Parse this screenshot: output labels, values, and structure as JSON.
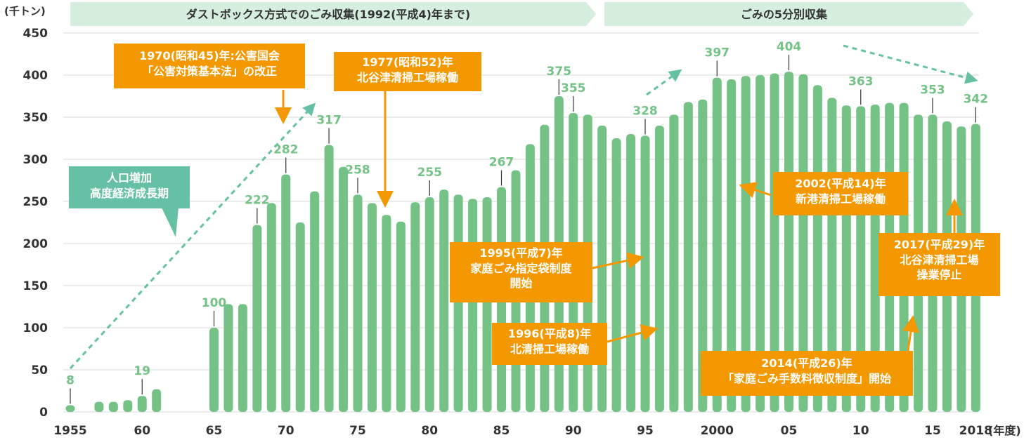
{
  "chart_data": {
    "type": "bar",
    "unit_label": "(千トン)",
    "x_unit_label": "(年度)",
    "ylim": [
      0,
      450
    ],
    "y_ticks": [
      0,
      50,
      100,
      150,
      200,
      250,
      300,
      350,
      400,
      450
    ],
    "x_ticks": [
      {
        "year": 1955,
        "label": "1955"
      },
      {
        "year": 1960,
        "label": "60"
      },
      {
        "year": 1965,
        "label": "65"
      },
      {
        "year": 1970,
        "label": "70"
      },
      {
        "year": 1975,
        "label": "75"
      },
      {
        "year": 1980,
        "label": "80"
      },
      {
        "year": 1985,
        "label": "85"
      },
      {
        "year": 1990,
        "label": "90"
      },
      {
        "year": 1995,
        "label": "95"
      },
      {
        "year": 2000,
        "label": "2000"
      },
      {
        "year": 2005,
        "label": "05"
      },
      {
        "year": 2010,
        "label": "10"
      },
      {
        "year": 2015,
        "label": "15"
      },
      {
        "year": 2018,
        "label": "2018"
      }
    ],
    "years": [
      1955,
      1956,
      1957,
      1958,
      1959,
      1960,
      1961,
      1962,
      1963,
      1964,
      1965,
      1966,
      1967,
      1968,
      1969,
      1970,
      1971,
      1972,
      1973,
      1974,
      1975,
      1976,
      1977,
      1978,
      1979,
      1980,
      1981,
      1982,
      1983,
      1984,
      1985,
      1986,
      1987,
      1988,
      1989,
      1990,
      1991,
      1992,
      1993,
      1994,
      1995,
      1996,
      1997,
      1998,
      1999,
      2000,
      2001,
      2002,
      2003,
      2004,
      2005,
      2006,
      2007,
      2008,
      2009,
      2010,
      2011,
      2012,
      2013,
      2014,
      2015,
      2016,
      2017,
      2018
    ],
    "values": [
      8,
      null,
      12,
      12,
      14,
      19,
      27,
      null,
      null,
      null,
      100,
      128,
      128,
      222,
      248,
      282,
      225,
      262,
      317,
      291,
      258,
      248,
      234,
      226,
      249,
      255,
      264,
      258,
      253,
      255,
      267,
      287,
      318,
      341,
      375,
      355,
      353,
      340,
      325,
      330,
      328,
      340,
      353,
      368,
      371,
      397,
      395,
      399,
      400,
      402,
      404,
      401,
      388,
      373,
      364,
      363,
      365,
      367,
      367,
      353,
      353,
      345,
      339,
      342
    ],
    "data_labels": [
      {
        "year": 1955,
        "value": 8,
        "label": "8"
      },
      {
        "year": 1960,
        "value": 19,
        "label": "19"
      },
      {
        "year": 1965,
        "value": 100,
        "label": "100"
      },
      {
        "year": 1968,
        "value": 222,
        "label": "222"
      },
      {
        "year": 1970,
        "value": 282,
        "label": "282"
      },
      {
        "year": 1973,
        "value": 317,
        "label": "317"
      },
      {
        "year": 1975,
        "value": 258,
        "label": "258"
      },
      {
        "year": 1980,
        "value": 255,
        "label": "255"
      },
      {
        "year": 1985,
        "value": 267,
        "label": "267"
      },
      {
        "year": 1989,
        "value": 375,
        "label": "375"
      },
      {
        "year": 1990,
        "value": 355,
        "label": "355"
      },
      {
        "year": 1995,
        "value": 328,
        "label": "328"
      },
      {
        "year": 2000,
        "value": 397,
        "label": "397"
      },
      {
        "year": 2005,
        "value": 404,
        "label": "404"
      },
      {
        "year": 2010,
        "value": 363,
        "label": "363"
      },
      {
        "year": 2015,
        "value": 353,
        "label": "353"
      },
      {
        "year": 2018,
        "value": 342,
        "label": "342"
      }
    ],
    "periods": [
      {
        "label": "ダストボックス方式でのごみ収集(1992(平成4)年まで)",
        "start_year": 1955,
        "end_year": 1992
      },
      {
        "label": "ごみの5分別収集",
        "start_year": 1993,
        "end_year": 2018
      }
    ],
    "colors": {
      "bar": "#74c286",
      "label": "#74c286",
      "grid": "#d9d9d9",
      "orange": "#f39800",
      "teal": "#66c0a4",
      "period": "#d5eedd",
      "trend": "#66c0a4"
    }
  },
  "annotations": {
    "growth": [
      "人口増加",
      "高度経済成長期"
    ],
    "law_1970": [
      "1970(昭和45)年:公害国会",
      "「公害対策基本法」の改正"
    ],
    "plant_1977": [
      "1977(昭和52)年",
      "北谷津清掃工場稼働"
    ],
    "bags_1995": [
      "1995(平成7)年",
      "家庭ごみ指定袋制度",
      "開始"
    ],
    "plant_1996": [
      "1996(平成8)年",
      "北清掃工場稼働"
    ],
    "plant_2002": [
      "2002(平成14)年",
      "新港清掃工場稼働"
    ],
    "fee_2014": [
      "2014(平成26)年",
      "「家庭ごみ手数料徴収制度」開始"
    ],
    "stop_2017": [
      "2017(平成29)年",
      "北谷津清掃工場",
      "操業停止"
    ]
  }
}
